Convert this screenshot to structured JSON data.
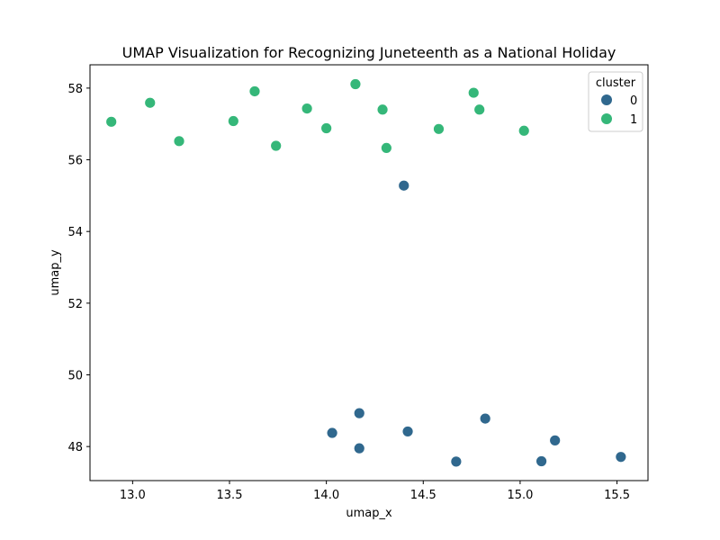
{
  "chart_data": {
    "type": "scatter",
    "title": "UMAP Visualization for Recognizing Juneteenth as a National Holiday",
    "xlabel": "umap_x",
    "ylabel": "umap_y",
    "xlim": [
      12.78,
      15.66
    ],
    "ylim": [
      47.05,
      58.65
    ],
    "xticks": [
      13.0,
      13.5,
      14.0,
      14.5,
      15.0,
      15.5
    ],
    "xtick_labels": [
      "13.0",
      "13.5",
      "14.0",
      "14.5",
      "15.0",
      "15.5"
    ],
    "yticks": [
      48,
      50,
      52,
      54,
      56,
      58
    ],
    "ytick_labels": [
      "48",
      "50",
      "52",
      "54",
      "56",
      "58"
    ],
    "grid": false,
    "legend": {
      "title": "cluster",
      "placement": "top-right",
      "entries": [
        {
          "label": "0",
          "color": "#30688e"
        },
        {
          "label": "1",
          "color": "#35b779"
        }
      ]
    },
    "series": [
      {
        "name": "0",
        "color": "#30688e",
        "points": [
          {
            "x": 14.4,
            "y": 55.28
          },
          {
            "x": 14.17,
            "y": 48.93
          },
          {
            "x": 14.82,
            "y": 48.78
          },
          {
            "x": 14.03,
            "y": 48.38
          },
          {
            "x": 14.42,
            "y": 48.42
          },
          {
            "x": 15.18,
            "y": 48.17
          },
          {
            "x": 14.17,
            "y": 47.95
          },
          {
            "x": 14.67,
            "y": 47.58
          },
          {
            "x": 15.11,
            "y": 47.59
          },
          {
            "x": 15.52,
            "y": 47.71
          }
        ]
      },
      {
        "name": "1",
        "color": "#35b779",
        "points": [
          {
            "x": 12.89,
            "y": 57.06
          },
          {
            "x": 13.09,
            "y": 57.59
          },
          {
            "x": 13.24,
            "y": 56.52
          },
          {
            "x": 13.52,
            "y": 57.08
          },
          {
            "x": 13.63,
            "y": 57.91
          },
          {
            "x": 13.74,
            "y": 56.39
          },
          {
            "x": 13.9,
            "y": 57.43
          },
          {
            "x": 14.0,
            "y": 56.88
          },
          {
            "x": 14.15,
            "y": 58.11
          },
          {
            "x": 14.29,
            "y": 57.4
          },
          {
            "x": 14.31,
            "y": 56.33
          },
          {
            "x": 14.58,
            "y": 56.86
          },
          {
            "x": 14.76,
            "y": 57.87
          },
          {
            "x": 14.79,
            "y": 57.4
          },
          {
            "x": 15.02,
            "y": 56.81
          }
        ]
      }
    ]
  }
}
